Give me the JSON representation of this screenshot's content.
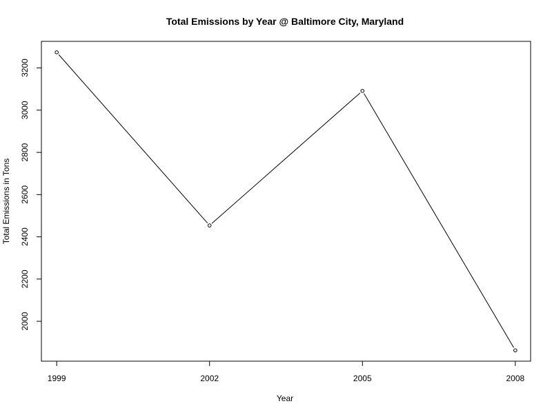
{
  "chart_data": {
    "type": "line",
    "title": "Total Emissions by Year @ Baltimore City, Maryland",
    "xlabel": "Year",
    "ylabel": "Total Emissions in Tons",
    "x": [
      1999,
      2002,
      2005,
      2008
    ],
    "series": [
      {
        "values": [
          3274.18,
          2453.92,
          3091.35,
          1862.28
        ]
      }
    ],
    "xticks": [
      "1999",
      "2002",
      "2005",
      "2008"
    ],
    "yticks": [
      "2000",
      "2200",
      "2400",
      "2600",
      "2800",
      "3000",
      "3200"
    ],
    "xlim": [
      1998.7,
      2008.3
    ],
    "ylim": [
      1811,
      3326
    ],
    "marker": "open-circle",
    "line_color": "#000000",
    "grid": false,
    "legend": false
  }
}
